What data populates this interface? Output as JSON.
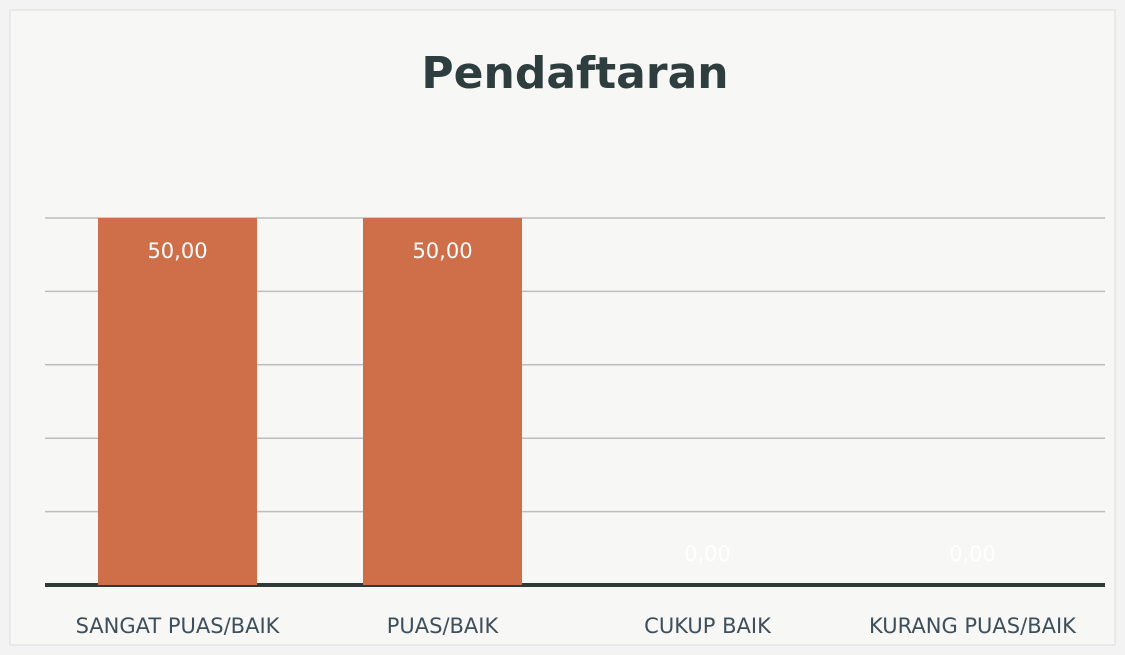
{
  "chart_data": {
    "type": "bar",
    "title": "Pendaftaran",
    "categories": [
      "SANGAT PUAS/BAIK",
      "PUAS/BAIK",
      "CUKUP BAIK",
      "KURANG PUAS/BAIK"
    ],
    "values": [
      50,
      50,
      0,
      0
    ],
    "value_labels": [
      "50,00",
      "50,00",
      "0,00",
      "0,00"
    ],
    "color": "#cf6f4a",
    "ylim": [
      0,
      50
    ],
    "yticks": [
      0,
      10,
      20,
      30,
      40,
      50
    ],
    "grid": true
  }
}
